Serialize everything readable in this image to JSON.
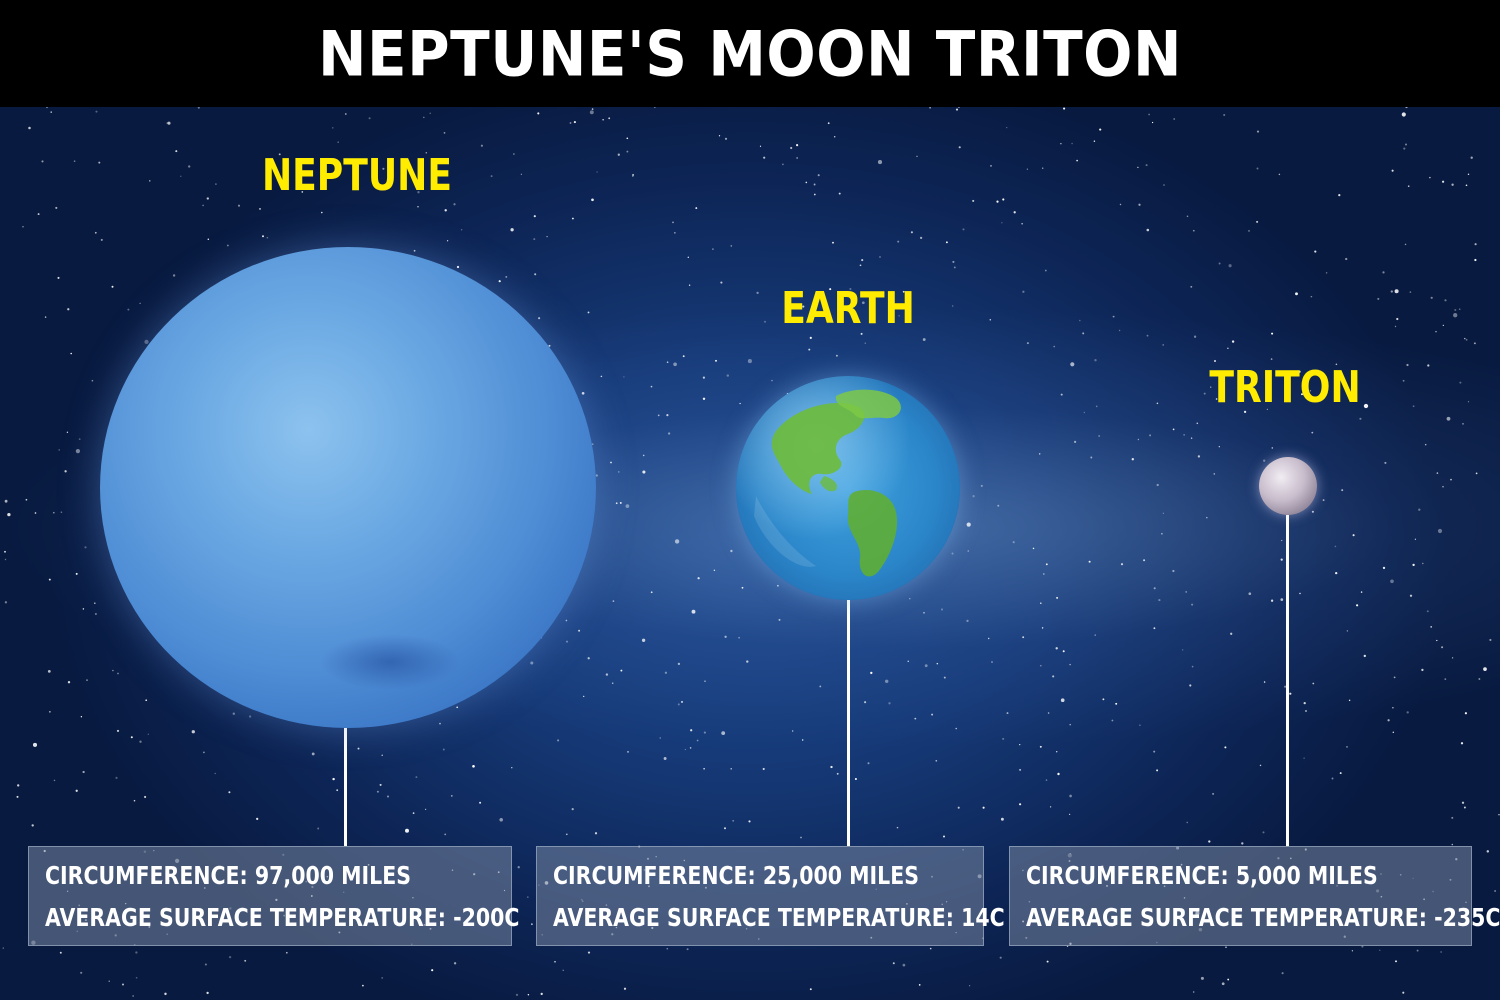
{
  "title": "NEPTUNE'S MOON TRITON",
  "colors": {
    "title_background": "#000000",
    "title_text": "#ffffff",
    "planet_label": "#ffec00",
    "space": "#163a78",
    "info_box": "#7887a0",
    "info_text": "#ffffff"
  },
  "bodies": [
    {
      "name": "NEPTUNE",
      "icon": "neptune-planet-icon",
      "circumference": "CIRCUMFERENCE: 97,000 MILES",
      "temperature": "AVERAGE SURFACE TEMPERATURE: -200C"
    },
    {
      "name": "EARTH",
      "icon": "earth-planet-icon",
      "circumference": "CIRCUMFERENCE: 25,000 MILES",
      "temperature": "AVERAGE SURFACE TEMPERATURE: 14C"
    },
    {
      "name": "TRITON",
      "icon": "triton-moon-icon",
      "circumference": "CIRCUMFERENCE: 5,000 MILES",
      "temperature": "AVERAGE SURFACE TEMPERATURE: -235C"
    }
  ]
}
